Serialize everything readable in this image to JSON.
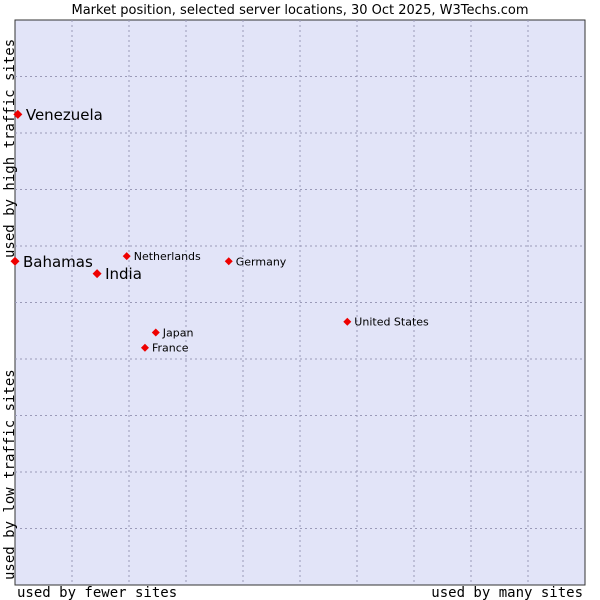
{
  "chart_data": {
    "type": "scatter",
    "title": "Market position, selected server locations, 30 Oct 2025, W3Techs.com",
    "xlabel_low": "used by fewer sites",
    "xlabel_high": "used by many sites",
    "ylabel_low": "used by low traffic sites",
    "ylabel_high": "used by high traffic sites",
    "xlim": [
      0,
      100
    ],
    "ylim": [
      0,
      100
    ],
    "grid": true,
    "colors": {
      "plot_bg": "#e2e4f8",
      "point": "#ee0000",
      "grid": "#9a9ab8",
      "border": "#333333"
    },
    "points": [
      {
        "name": "Venezuela",
        "x": 0.5,
        "y": 83.3,
        "size": "large"
      },
      {
        "name": "Bahamas",
        "x": 0.0,
        "y": 57.3,
        "size": "large"
      },
      {
        "name": "India",
        "x": 14.4,
        "y": 55.1,
        "size": "large"
      },
      {
        "name": "Netherlands",
        "x": 19.6,
        "y": 58.2,
        "size": "small"
      },
      {
        "name": "Germany",
        "x": 37.5,
        "y": 57.3,
        "size": "small"
      },
      {
        "name": "United States",
        "x": 58.3,
        "y": 46.6,
        "size": "small"
      },
      {
        "name": "Japan",
        "x": 24.7,
        "y": 44.7,
        "size": "small"
      },
      {
        "name": "France",
        "x": 22.8,
        "y": 42.0,
        "size": "small"
      }
    ]
  }
}
